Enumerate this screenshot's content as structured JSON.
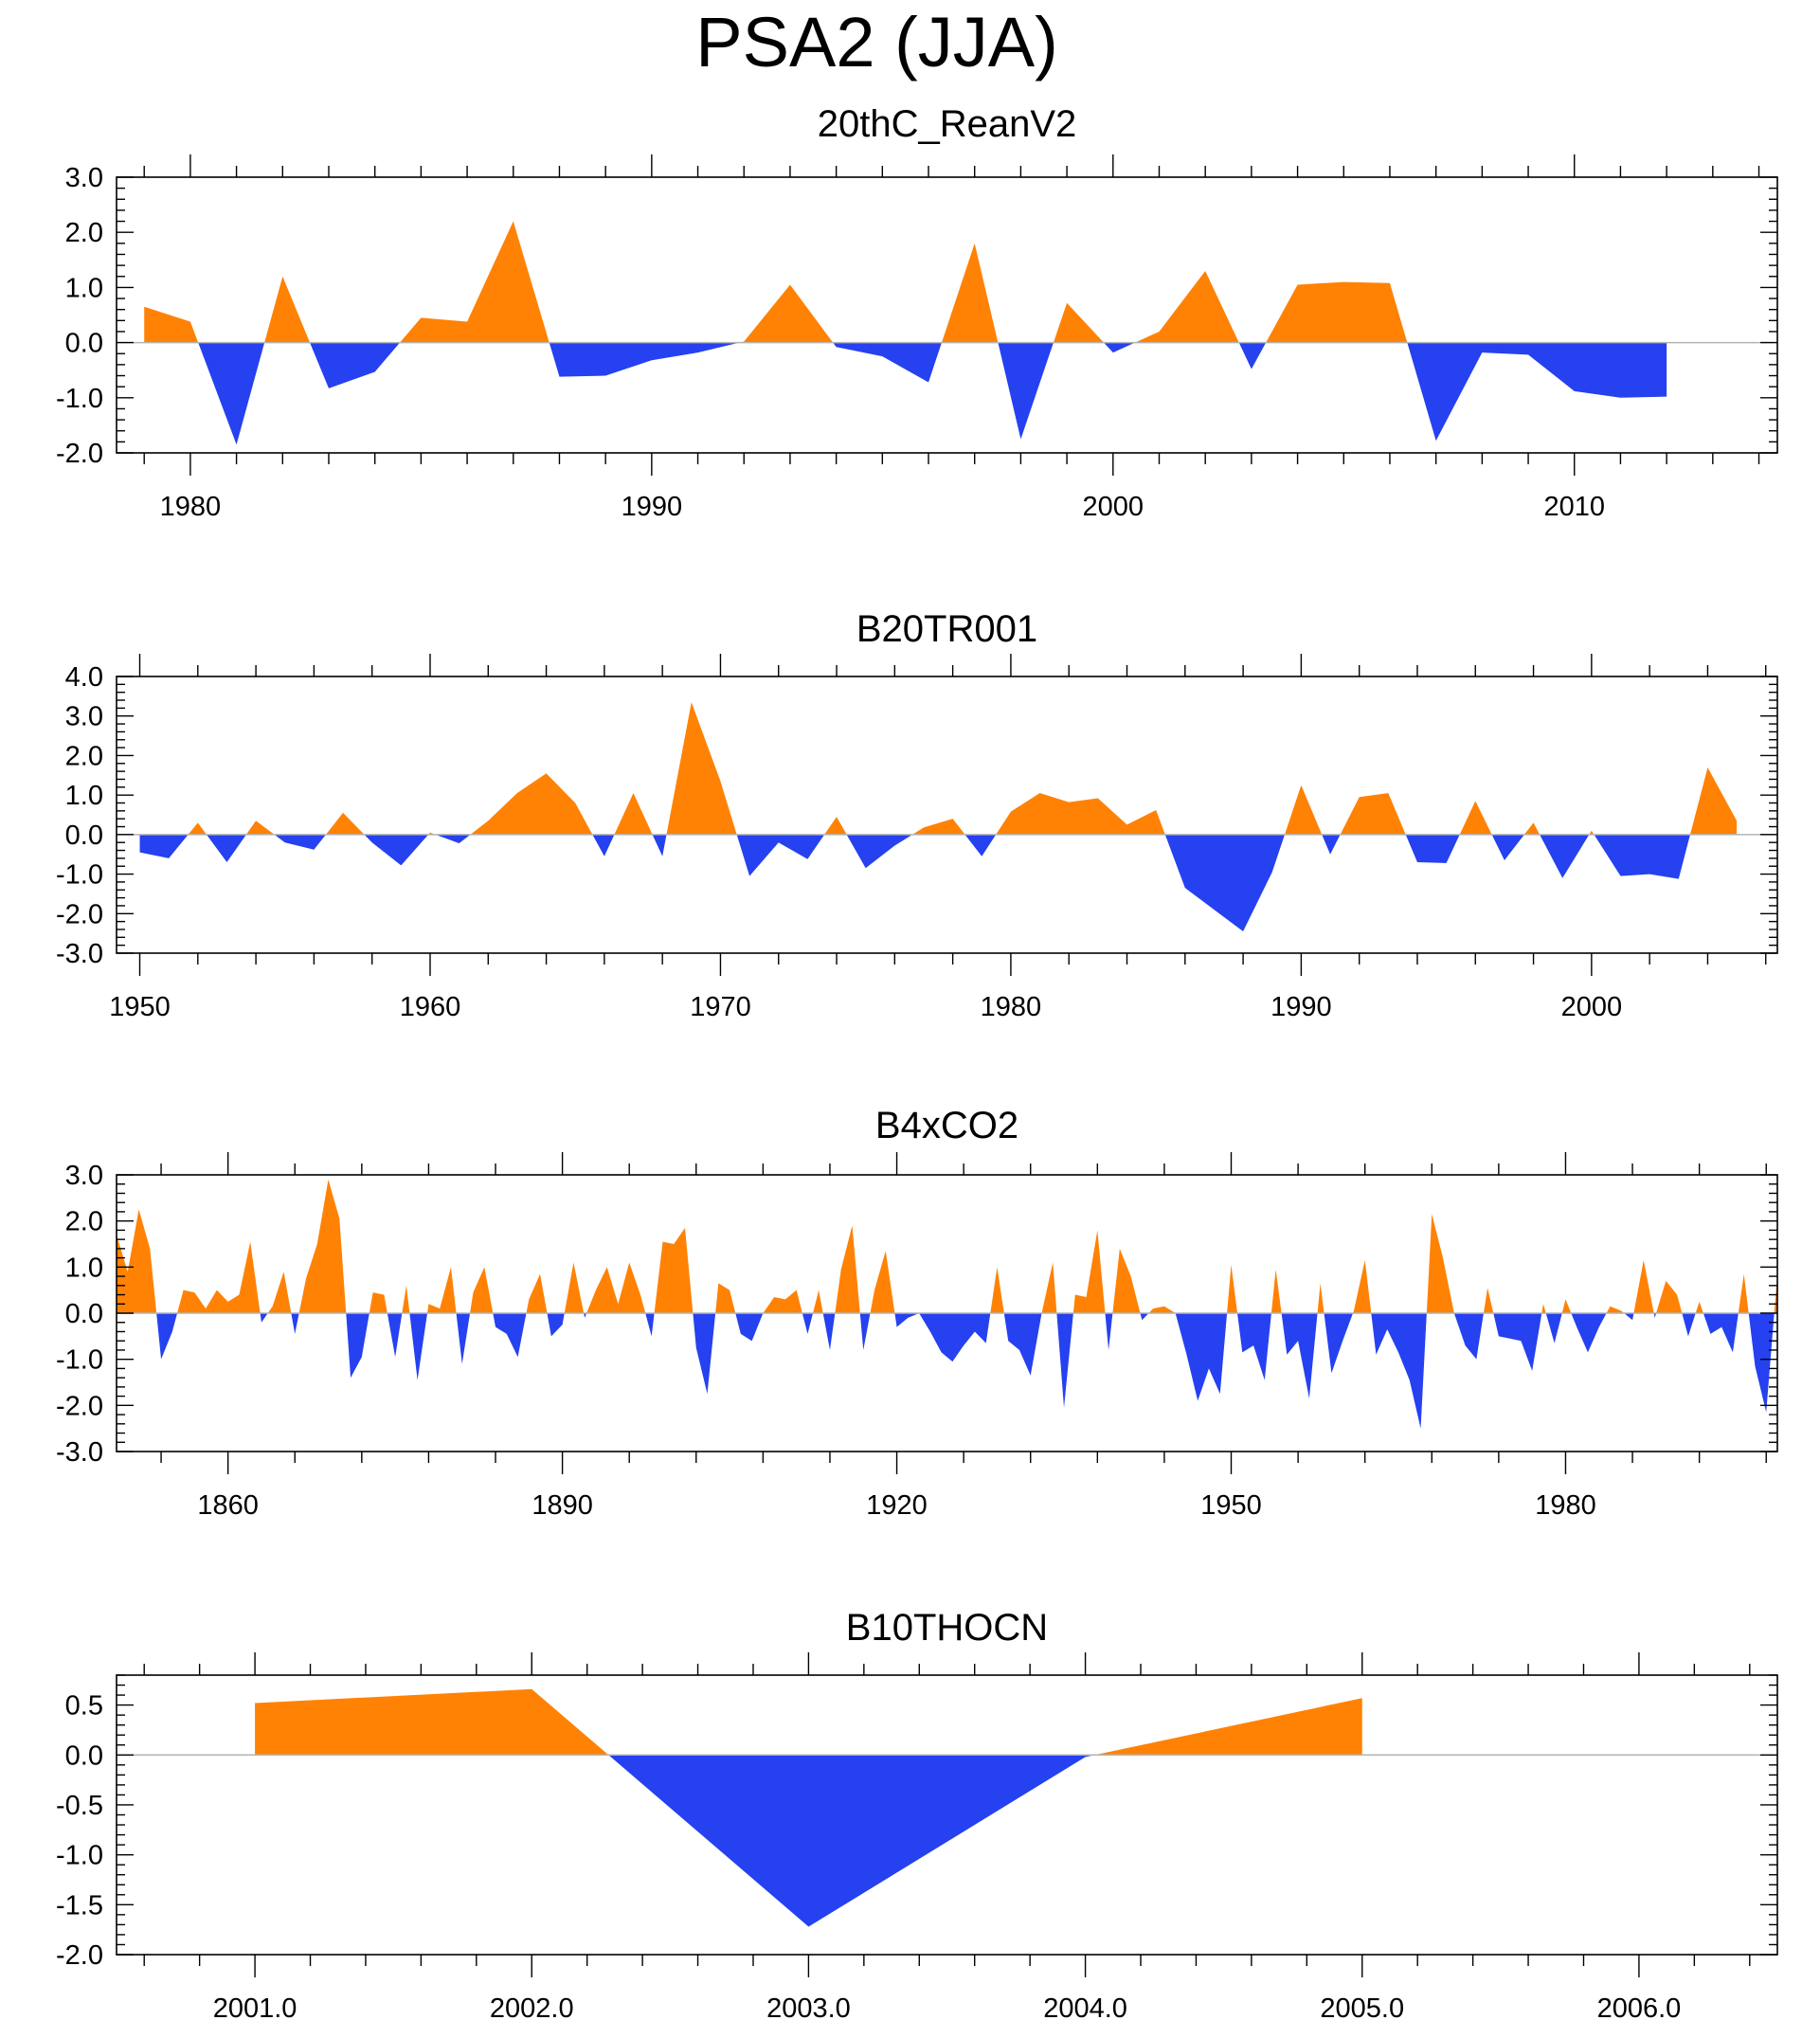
{
  "title": "PSA2 (JJA)",
  "colors": {
    "positive": "#ff8205",
    "negative": "#2541f0",
    "axis": "#000000",
    "zero_line": "#b4b4b4"
  },
  "chart_data": [
    {
      "type": "area",
      "title": "20thC_ReanV2",
      "xlabel": "",
      "ylabel": "",
      "xlim": [
        1978.4,
        2014.4
      ],
      "ylim": [
        -2.0,
        3.0
      ],
      "yticks": [
        -2.0,
        -1.0,
        0.0,
        1.0,
        2.0,
        3.0
      ],
      "ytick_labels": [
        "-2.0",
        "-1.0",
        "0.0",
        "1.0",
        "2.0",
        "3.0"
      ],
      "yminor": 0.2,
      "xticks": [
        1980,
        1990,
        2000,
        2010
      ],
      "xtick_labels": [
        "1980",
        "1990",
        "2000",
        "2010"
      ],
      "xminor": 1,
      "x": [
        1979,
        1980,
        1981,
        1982,
        1983,
        1984,
        1985,
        1986,
        1987,
        1988,
        1989,
        1990,
        1991,
        1992,
        1993,
        1994,
        1995,
        1996,
        1997,
        1998,
        1999,
        2000,
        2001,
        2002,
        2003,
        2004,
        2005,
        2006,
        2007,
        2008,
        2009,
        2010,
        2011,
        2012
      ],
      "values": [
        0.65,
        0.38,
        -1.85,
        1.2,
        -0.83,
        -0.53,
        0.45,
        0.38,
        2.2,
        -0.62,
        -0.6,
        -0.32,
        -0.18,
        0.02,
        1.05,
        -0.08,
        -0.25,
        -0.72,
        1.8,
        -1.75,
        0.72,
        -0.18,
        0.2,
        1.3,
        -0.48,
        1.05,
        1.1,
        1.08,
        -1.78,
        -0.18,
        -0.22,
        -0.88,
        -1.0,
        -0.98
      ]
    },
    {
      "type": "area",
      "title": "B20TR001",
      "xlabel": "",
      "ylabel": "",
      "xlim": [
        1949.2,
        2006.4
      ],
      "ylim": [
        -3.0,
        4.0
      ],
      "yticks": [
        -3.0,
        -2.0,
        -1.0,
        0.0,
        1.0,
        2.0,
        3.0,
        4.0
      ],
      "ytick_labels": [
        "-3.0",
        "-2.0",
        "-1.0",
        "0.0",
        "1.0",
        "2.0",
        "3.0",
        "4.0"
      ],
      "yminor": 0.2,
      "xticks": [
        1950,
        1960,
        1970,
        1980,
        1990,
        2000
      ],
      "xtick_labels": [
        "1950",
        "1960",
        "1970",
        "1980",
        "1990",
        "2000"
      ],
      "xminor": 2,
      "x": [
        1950,
        1951,
        1952,
        1953,
        1954,
        1955,
        1956,
        1957,
        1958,
        1959,
        1960,
        1961,
        1962,
        1963,
        1964,
        1965,
        1966,
        1967,
        1968,
        1969,
        1970,
        1971,
        1972,
        1973,
        1974,
        1975,
        1976,
        1977,
        1978,
        1979,
        1980,
        1981,
        1982,
        1983,
        1984,
        1985,
        1986,
        1987,
        1988,
        1989,
        1990,
        1991,
        1992,
        1993,
        1994,
        1995,
        1996,
        1997,
        1998,
        1999,
        2000,
        2001,
        2002,
        2003,
        2004,
        2005
      ],
      "values": [
        -0.45,
        -0.6,
        0.3,
        -0.7,
        0.35,
        -0.2,
        -0.38,
        0.55,
        -0.2,
        -0.78,
        0.05,
        -0.22,
        0.35,
        1.05,
        1.55,
        0.8,
        -0.55,
        1.05,
        -0.55,
        3.35,
        1.35,
        -1.05,
        -0.2,
        -0.62,
        0.45,
        -0.85,
        -0.28,
        0.18,
        0.4,
        -0.55,
        0.58,
        1.05,
        0.82,
        0.92,
        0.25,
        0.62,
        -1.35,
        -1.9,
        -2.45,
        -0.95,
        1.25,
        -0.5,
        0.95,
        1.05,
        -0.7,
        -0.72,
        0.85,
        -0.65,
        0.3,
        -1.1,
        0.1,
        -1.05,
        -1.0,
        -1.12,
        1.7,
        0.35
      ]
    },
    {
      "type": "area",
      "title": "B4xCO2",
      "xlabel": "",
      "ylabel": "",
      "xlim": [
        1850,
        1999
      ],
      "ylim": [
        -3.0,
        3.0
      ],
      "yticks": [
        -3.0,
        -2.0,
        -1.0,
        0.0,
        1.0,
        2.0,
        3.0
      ],
      "ytick_labels": [
        "-3.0",
        "-2.0",
        "-1.0",
        "0.0",
        "1.0",
        "2.0",
        "3.0"
      ],
      "yminor": 0.2,
      "xticks": [
        1860,
        1890,
        1920,
        1950,
        1980
      ],
      "xtick_labels": [
        "1860",
        "1890",
        "1920",
        "1950",
        "1980"
      ],
      "xminor": 6,
      "x_start": 1850,
      "values": [
        1.7,
        0.9,
        2.25,
        1.4,
        -1.0,
        -0.4,
        0.5,
        0.45,
        0.1,
        0.5,
        0.25,
        0.4,
        1.55,
        -0.2,
        0.15,
        0.9,
        -0.45,
        0.75,
        1.5,
        2.9,
        2.05,
        -1.4,
        -0.95,
        0.45,
        0.4,
        -0.95,
        0.6,
        -1.45,
        0.2,
        0.1,
        1.0,
        -1.1,
        0.45,
        1.0,
        -0.3,
        -0.45,
        -0.95,
        0.3,
        0.85,
        -0.5,
        -0.25,
        1.1,
        -0.1,
        0.5,
        1.0,
        0.2,
        1.1,
        0.4,
        -0.5,
        1.55,
        1.5,
        1.85,
        -0.75,
        -1.75,
        0.65,
        0.5,
        -0.45,
        -0.6,
        0.0,
        0.35,
        0.3,
        0.5,
        -0.45,
        0.5,
        -0.8,
        0.95,
        1.9,
        -0.8,
        0.5,
        1.35,
        -0.3,
        -0.1,
        0.0,
        -0.4,
        -0.85,
        -1.05,
        -0.7,
        -0.4,
        -0.65,
        1.0,
        -0.6,
        -0.8,
        -1.35,
        0.0,
        1.1,
        -2.05,
        0.4,
        0.35,
        1.8,
        -0.8,
        1.4,
        0.8,
        -0.15,
        0.1,
        0.15,
        0.0,
        -0.9,
        -1.9,
        -1.2,
        -1.75,
        1.05,
        -0.85,
        -0.7,
        -1.45,
        0.95,
        -0.9,
        -0.6,
        -1.85,
        0.65,
        -1.3,
        -0.6,
        0.05,
        1.15,
        -0.9,
        -0.35,
        -0.85,
        -1.45,
        -2.5,
        2.15,
        1.2,
        0.0,
        -0.7,
        -1.0,
        0.55,
        -0.5,
        -0.55,
        -0.6,
        -1.25,
        0.2,
        -0.65,
        0.3,
        -0.3,
        -0.85,
        -0.3,
        0.15,
        0.05,
        -0.15,
        1.15,
        -0.1,
        0.7,
        0.4,
        -0.5,
        0.25,
        -0.45,
        -0.3,
        -0.85,
        0.85,
        -1.15,
        -2.15,
        0.85
      ]
    },
    {
      "type": "area",
      "title": "B10THOCN",
      "xlabel": "",
      "ylabel": "",
      "xlim": [
        2000.5,
        2006.5
      ],
      "ylim": [
        -2.0,
        0.8
      ],
      "yticks": [
        -2.0,
        -1.5,
        -1.0,
        -0.5,
        0.0,
        0.5
      ],
      "ytick_labels": [
        "-2.0",
        "-1.5",
        "-1.0",
        "-0.5",
        "0.0",
        "0.5"
      ],
      "yminor": 0.1,
      "xticks": [
        2001,
        2002,
        2003,
        2004,
        2005,
        2006
      ],
      "xtick_labels": [
        "2001.0",
        "2002.0",
        "2003.0",
        "2004.0",
        "2005.0",
        "2006.0"
      ],
      "xminor": 0.2,
      "x": [
        2001,
        2002,
        2003,
        2004,
        2005
      ],
      "values": [
        0.52,
        0.66,
        -1.72,
        -0.02,
        0.57
      ]
    }
  ]
}
